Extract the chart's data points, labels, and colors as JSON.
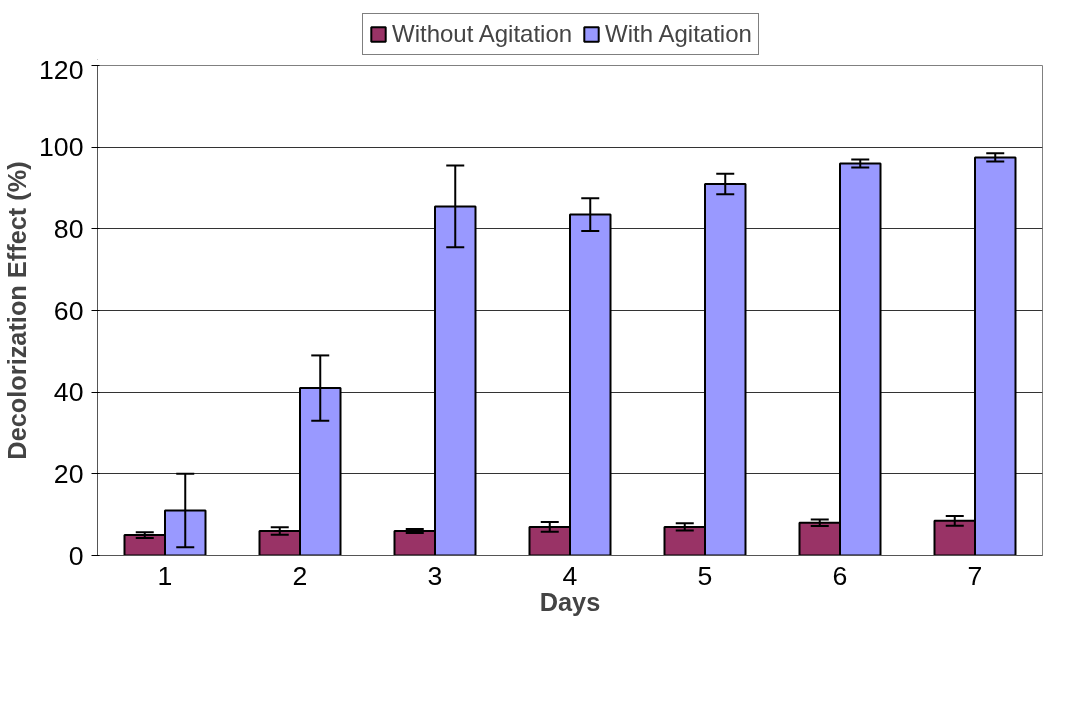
{
  "chart_data": {
    "type": "bar",
    "xlabel": "Days",
    "ylabel": "Decolorization Effect (%)",
    "categories": [
      "1",
      "2",
      "3",
      "4",
      "5",
      "6",
      "7"
    ],
    "series": [
      {
        "name": "Without Agitation",
        "color": "#993366",
        "values": [
          5,
          6,
          6,
          7,
          7,
          8,
          8.5
        ],
        "errors": [
          0.7,
          0.9,
          0.5,
          1.2,
          0.9,
          0.8,
          1.2
        ]
      },
      {
        "name": "With Agitation",
        "color": "#9999ff",
        "values": [
          11,
          41,
          85.5,
          83.5,
          91,
          96,
          97.5
        ],
        "errors": [
          9,
          8,
          10,
          4,
          2.5,
          1,
          1
        ]
      }
    ],
    "ylim": [
      0,
      120
    ],
    "yticks": [
      0,
      20,
      40,
      60,
      80,
      100,
      120
    ],
    "grid": "y",
    "legend": "top"
  }
}
